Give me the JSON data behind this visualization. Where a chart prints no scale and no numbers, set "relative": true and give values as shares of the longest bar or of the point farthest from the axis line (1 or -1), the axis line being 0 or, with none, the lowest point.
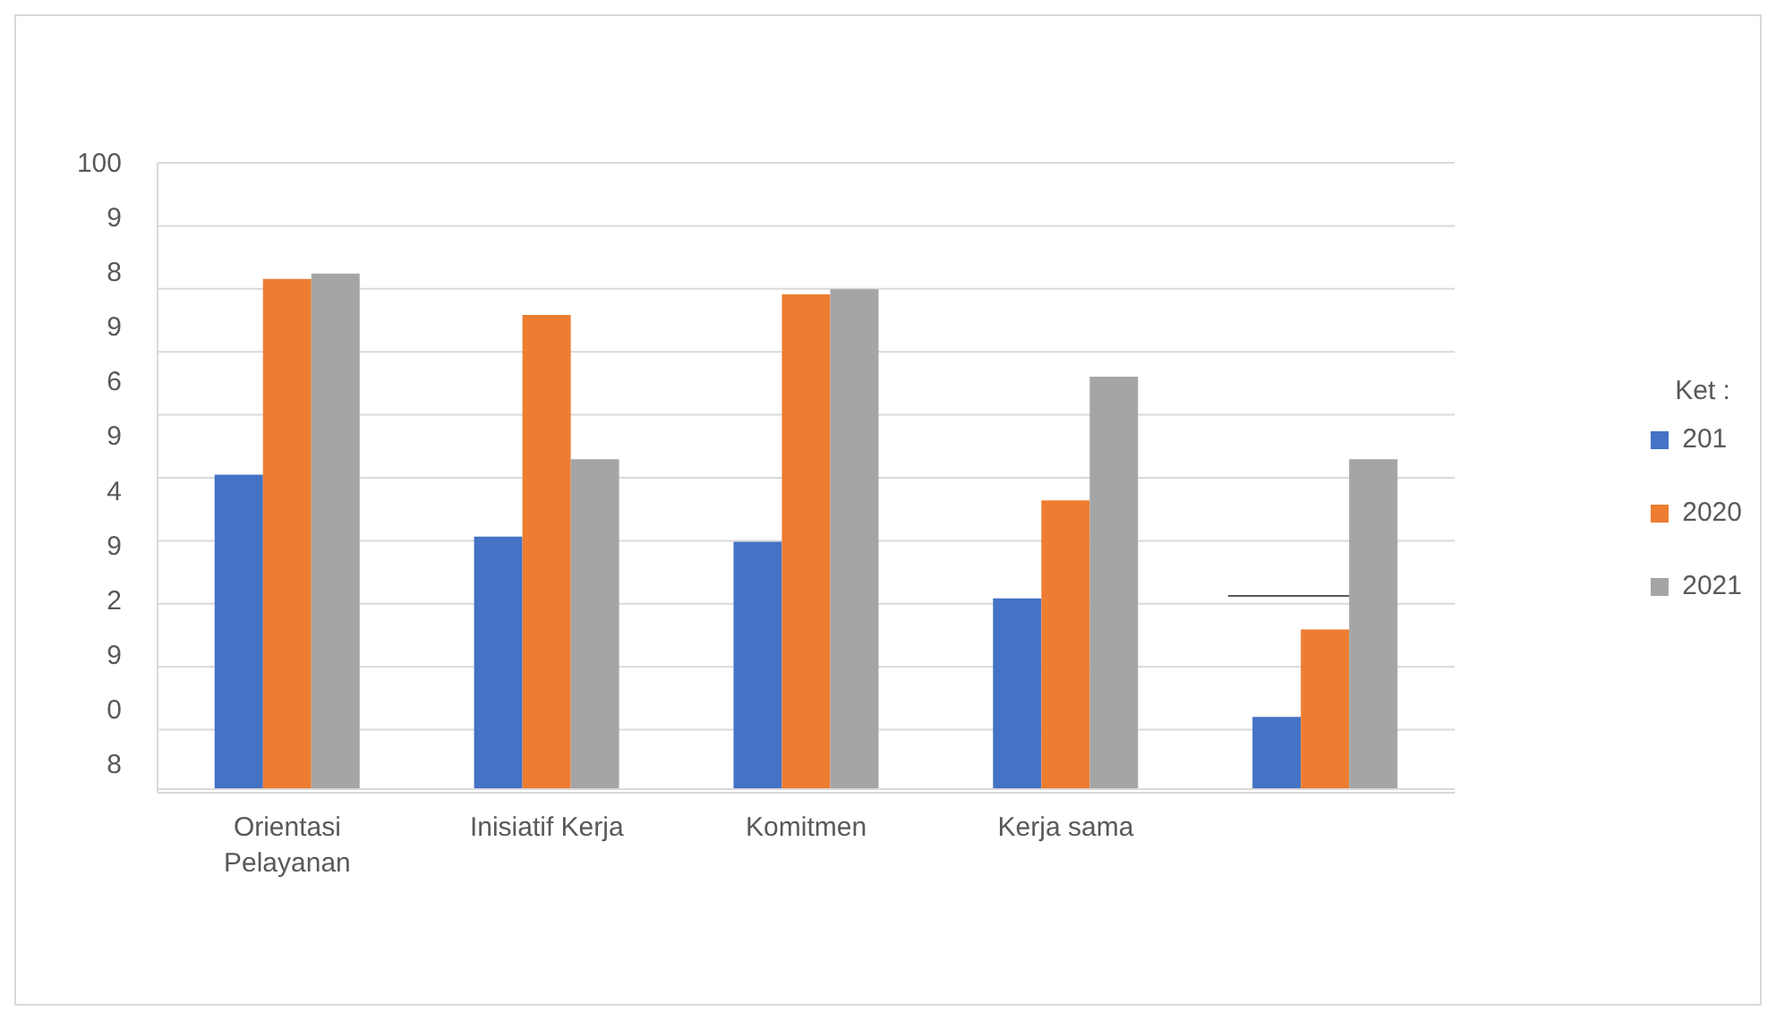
{
  "chart_data": {
    "type": "bar",
    "relative": true,
    "categories": [
      "Orientasi Pelayanan",
      "Inisiatif Kerja",
      "Komitmen",
      "Kerja sama",
      null
    ],
    "series": [
      {
        "name": "201",
        "color": "#4472c4",
        "values": [
          0.61,
          0.49,
          0.48,
          0.37,
          0.14
        ]
      },
      {
        "name": "2020",
        "color": "#ed7d31",
        "values": [
          0.99,
          0.92,
          0.96,
          0.56,
          0.31
        ]
      },
      {
        "name": "2021",
        "color": "#a5a5a5",
        "values": [
          1,
          0.64,
          0.97,
          0.8,
          0.64
        ]
      }
    ],
    "annotations": [
      "100",
      "9",
      "8",
      "9",
      "6",
      "9",
      "4",
      "9",
      "2",
      "9",
      "0",
      "8"
    ],
    "grid": true,
    "legend": "right",
    "legend_title": "Ket :"
  }
}
